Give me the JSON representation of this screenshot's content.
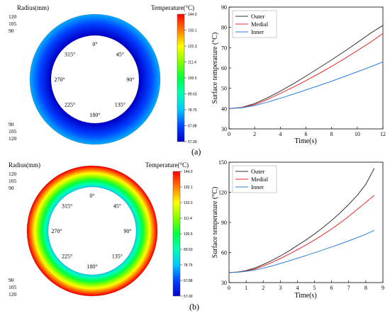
{
  "chart_data": [
    {
      "panel": "a",
      "type": "heatmap",
      "radius_label": "Radius(mm)",
      "radius_ticks": [
        "120",
        "105",
        "90"
      ],
      "angle_labels": [
        "0°",
        "45°",
        "90°",
        "135°",
        "180°",
        "225°",
        "270°",
        "315°"
      ],
      "colorbar_title": "Temperature(°C)",
      "colorbar_ticks": [
        "144.0",
        "133.1",
        "122.3",
        "111.4",
        "100.5",
        "89.63",
        "78.75",
        "67.88",
        "57.00"
      ],
      "range": [
        57.0,
        144.0
      ],
      "ring_outer_temp": 76.0,
      "ring_inner_temp": 57.0
    },
    {
      "panel": "a",
      "type": "line",
      "xlabel": "Time(s)",
      "ylabel": "Surface temperature (°C)",
      "xlim": [
        0,
        12
      ],
      "ylim": [
        30,
        90
      ],
      "xticks": [
        "0",
        "2",
        "4",
        "6",
        "8",
        "10",
        "12"
      ],
      "yticks": [
        "30",
        "40",
        "50",
        "60",
        "70",
        "80",
        "90"
      ],
      "legend": "top-left",
      "series": [
        {
          "name": "Outer",
          "color": "#333333",
          "x": [
            0,
            1,
            2,
            3,
            4,
            5,
            6,
            7,
            8,
            9,
            10,
            11,
            12
          ],
          "y": [
            40,
            40.6,
            42.5,
            45.3,
            48.6,
            52.2,
            56,
            60,
            64,
            68.2,
            72.5,
            77,
            81
          ]
        },
        {
          "name": "Medial",
          "color": "#e82a2a",
          "x": [
            0,
            1,
            2,
            3,
            4,
            5,
            6,
            7,
            8,
            9,
            10,
            11,
            12
          ],
          "y": [
            40,
            40.5,
            42,
            44.5,
            47.5,
            50.5,
            53.8,
            57.2,
            60.8,
            64.6,
            68.5,
            72.6,
            77
          ]
        },
        {
          "name": "Inner",
          "color": "#2c7fe0",
          "x": [
            0,
            1,
            2,
            3,
            4,
            5,
            6,
            7,
            8,
            9,
            10,
            11,
            12
          ],
          "y": [
            40,
            40.4,
            41.5,
            43.2,
            45.1,
            47.1,
            49.2,
            51.3,
            53.5,
            55.8,
            58.1,
            60.5,
            63
          ]
        }
      ]
    },
    {
      "panel": "b",
      "type": "heatmap",
      "radius_label": "Radius(mm)",
      "radius_ticks": [
        "120",
        "105",
        "90"
      ],
      "angle_labels": [
        "0°",
        "45°",
        "90°",
        "135°",
        "180°",
        "225°",
        "270°",
        "315°"
      ],
      "colorbar_title": "Temperature(°C)",
      "colorbar_ticks": [
        "144.0",
        "133.1",
        "122.3",
        "111.4",
        "100.5",
        "89.63",
        "78.75",
        "67.88",
        "57.00"
      ],
      "range": [
        57.0,
        144.0
      ],
      "ring_outer_temp": 144.0,
      "ring_inner_temp": 82.0
    },
    {
      "panel": "b",
      "type": "line",
      "xlabel": "Time(s)",
      "ylabel": "Surface temperature (°C)",
      "xlim": [
        0,
        9
      ],
      "ylim": [
        30,
        150
      ],
      "xticks": [
        "0",
        "1",
        "2",
        "3",
        "4",
        "5",
        "6",
        "7",
        "8",
        "9"
      ],
      "yticks": [
        "30",
        "60",
        "90",
        "120",
        "150"
      ],
      "legend": "top-left",
      "series": [
        {
          "name": "Outer",
          "color": "#333333",
          "x": [
            0,
            0.5,
            1,
            1.5,
            2,
            2.5,
            3,
            3.5,
            4,
            4.5,
            5,
            5.5,
            6,
            6.5,
            7,
            7.5,
            8,
            8.5
          ],
          "y": [
            40,
            40.5,
            42,
            44.5,
            48,
            52,
            56.5,
            61.5,
            67,
            72.5,
            78.5,
            85,
            92,
            99.5,
            108,
            117,
            128,
            144
          ]
        },
        {
          "name": "Medial",
          "color": "#e82a2a",
          "x": [
            0,
            0.5,
            1,
            1.5,
            2,
            2.5,
            3,
            3.5,
            4,
            4.5,
            5,
            5.5,
            6,
            6.5,
            7,
            7.5,
            8,
            8.5
          ],
          "y": [
            40,
            40.4,
            41.6,
            43.5,
            46.5,
            50,
            54,
            58.3,
            62.8,
            67.5,
            72.5,
            77.8,
            83.5,
            89.5,
            96,
            103,
            110,
            117
          ]
        },
        {
          "name": "Inner",
          "color": "#2c7fe0",
          "x": [
            0,
            0.5,
            1,
            1.5,
            2,
            2.5,
            3,
            3.5,
            4,
            4.5,
            5,
            5.5,
            6,
            6.5,
            7,
            7.5,
            8,
            8.5
          ],
          "y": [
            40,
            40.3,
            41.2,
            42.5,
            44.3,
            46.5,
            49,
            51.6,
            54.3,
            57,
            59.8,
            62.6,
            65.5,
            68.5,
            71.6,
            74.8,
            78.2,
            82
          ]
        }
      ]
    }
  ],
  "panel_labels": [
    "(a)",
    "(b)"
  ]
}
